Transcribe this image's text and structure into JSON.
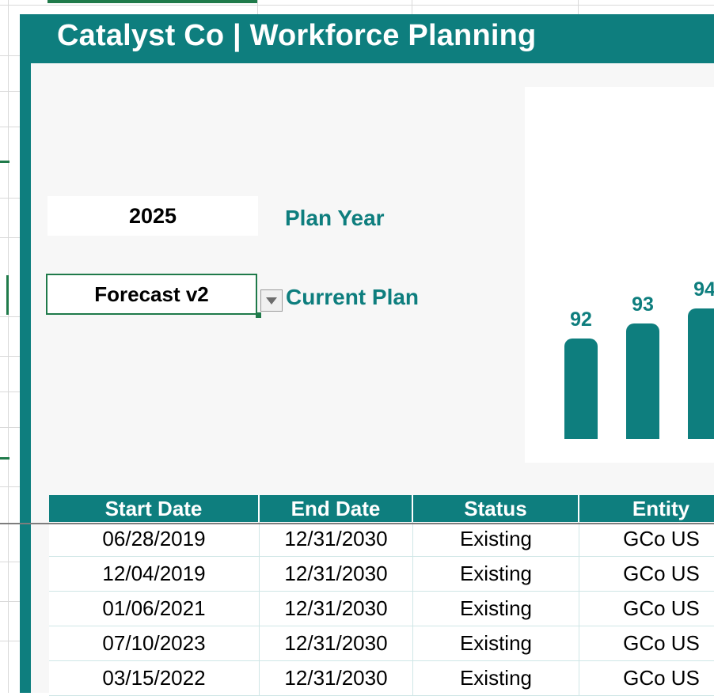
{
  "header": {
    "title": "Catalyst Co | Workforce Planning"
  },
  "controls": {
    "plan_year_value": "2025",
    "plan_year_label": "Plan Year",
    "current_plan_value": "Forecast v2",
    "current_plan_label": "Current Plan"
  },
  "chart_data": {
    "type": "bar",
    "categories": [
      "",
      "",
      ""
    ],
    "values": [
      92,
      93,
      94
    ],
    "data_labels": [
      "92",
      "93",
      "94"
    ],
    "ylim": [
      0,
      100
    ]
  },
  "table": {
    "columns": [
      "Start Date",
      "End Date",
      "Status",
      "Entity"
    ],
    "rows": [
      [
        "06/28/2019",
        "12/31/2030",
        "Existing",
        "GCo US"
      ],
      [
        "12/04/2019",
        "12/31/2030",
        "Existing",
        "GCo US"
      ],
      [
        "01/06/2021",
        "12/31/2030",
        "Existing",
        "GCo US"
      ],
      [
        "07/10/2023",
        "12/31/2030",
        "Existing",
        "GCo US"
      ],
      [
        "03/15/2022",
        "12/31/2030",
        "Existing",
        "GCo US"
      ]
    ]
  },
  "colors": {
    "accent": "#0e7e7e",
    "selection": "#1f7a4a",
    "panel": "#f7f7f7"
  },
  "icons": {
    "dropdown": "chevron-down-icon"
  }
}
